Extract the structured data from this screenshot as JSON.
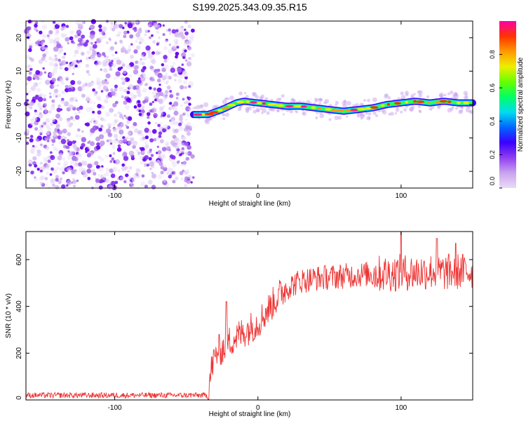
{
  "title": "S199.2025.343.09.35.R15",
  "chart_data": [
    {
      "type": "heatmap",
      "xlabel": "Height of straight line (km)",
      "ylabel": "Frequency (Hz)",
      "xlim": [
        -162,
        150
      ],
      "ylim": [
        -25,
        25
      ],
      "xticks": [
        -100,
        0,
        100
      ],
      "yticks": [
        -20,
        -10,
        0,
        10,
        20
      ],
      "xtick_labels": [
        "-100",
        "0",
        "100"
      ],
      "ytick_labels": [
        "-20",
        "-10",
        "0",
        "10",
        "20"
      ],
      "noise_region_x": [
        -162,
        -45
      ],
      "signal_onset_x": -45,
      "signal_track": {
        "x": [
          -45,
          -35,
          -25,
          -15,
          -10,
          0,
          10,
          20,
          30,
          40,
          50,
          60,
          70,
          80,
          90,
          100,
          110,
          120,
          130,
          140,
          150
        ],
        "freq": [
          -3,
          -3,
          -1.5,
          0.5,
          1,
          0.5,
          0,
          -0.5,
          -0.5,
          -1,
          -1.5,
          -2,
          -1.5,
          -1,
          0,
          0.5,
          1,
          0.5,
          1,
          0.5,
          0.5
        ]
      },
      "colorbar": {
        "label": "Normalized spectral amplitude",
        "range": [
          0.0,
          1.0
        ],
        "ticks": [
          0.0,
          0.2,
          0.4,
          0.6,
          0.8
        ],
        "tick_labels": [
          "0.0",
          "0.2",
          "0.4",
          "0.6",
          "0.8"
        ],
        "colors": [
          "#e9dcf5",
          "#c9a3ee",
          "#8f3ef0",
          "#3a00ff",
          "#0066ff",
          "#00ddee",
          "#00ff66",
          "#66ff00",
          "#eeee00",
          "#ff9900",
          "#ff3300",
          "#ff00aa"
        ]
      }
    },
    {
      "type": "line",
      "xlabel": "Height of straight line (km)",
      "ylabel": "SNR (10 * v/v)",
      "xlim": [
        -162,
        150
      ],
      "ylim": [
        0,
        720
      ],
      "xticks": [
        -100,
        0,
        100
      ],
      "yticks": [
        0,
        200,
        400,
        600
      ],
      "xtick_labels": [
        "-100",
        "0",
        "100"
      ],
      "ytick_labels": [
        "0",
        "200",
        "400",
        "600"
      ],
      "color": "#ee3333",
      "series": [
        {
          "name": "SNR",
          "x": [
            -162,
            -120,
            -80,
            -40,
            -35,
            -32,
            -28,
            -24,
            -20,
            -15,
            -10,
            -5,
            0,
            5,
            10,
            15,
            20,
            30,
            40,
            50,
            60,
            70,
            80,
            90,
            100,
            110,
            120,
            130,
            140,
            150
          ],
          "y": [
            20,
            20,
            20,
            20,
            20,
            150,
            210,
            220,
            250,
            270,
            290,
            310,
            330,
            370,
            410,
            450,
            480,
            510,
            520,
            525,
            530,
            535,
            540,
            540,
            545,
            545,
            550,
            545,
            550,
            550
          ]
        }
      ],
      "spikes": [
        {
          "x": -22,
          "y": 420
        },
        {
          "x": 100,
          "y": 720
        },
        {
          "x": 125,
          "y": 690
        },
        {
          "x": 138,
          "y": 670
        }
      ]
    }
  ]
}
